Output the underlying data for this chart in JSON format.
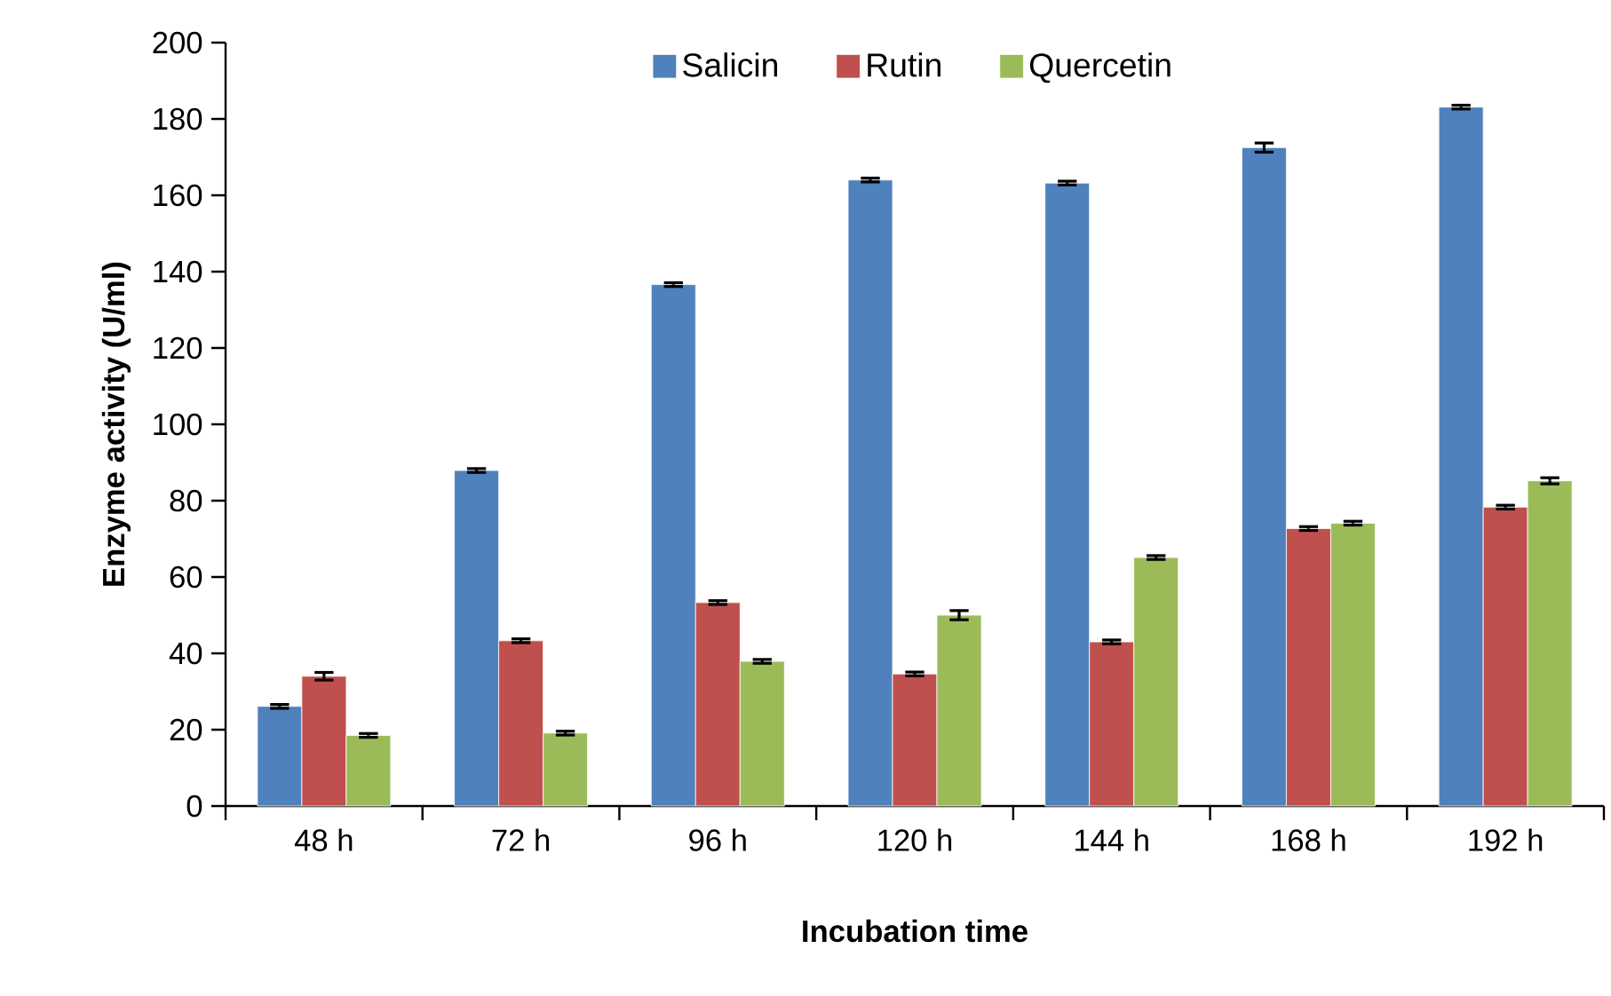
{
  "chart_data": {
    "type": "bar",
    "xlabel": "Incubation time",
    "ylabel": "Enzyme activity (U/ml)",
    "categories": [
      "48 h",
      "72 h",
      "96 h",
      "120 h",
      "144 h",
      "168 h",
      "192 h"
    ],
    "series": [
      {
        "name": "Salicin",
        "color": "#4f81bd",
        "values": [
          26.1,
          87.9,
          136.6,
          164,
          163.2,
          172.5,
          183.1
        ],
        "errors": [
          0.5,
          0.5,
          0.5,
          0.5,
          0.5,
          1.2,
          0.5
        ]
      },
      {
        "name": "Rutin",
        "color": "#c0504d",
        "values": [
          34,
          43.3,
          53.3,
          34.6,
          43,
          72.7,
          78.3
        ],
        "errors": [
          1,
          0.5,
          0.5,
          0.5,
          0.5,
          0.5,
          0.5
        ]
      },
      {
        "name": "Quercetin",
        "color": "#9bbb59",
        "values": [
          18.5,
          19.1,
          37.9,
          50,
          65.1,
          74.1,
          85.2
        ],
        "errors": [
          0.5,
          0.5,
          0.5,
          1.2,
          0.5,
          0.5,
          0.8
        ]
      }
    ],
    "ylim": [
      0,
      200
    ],
    "yticks": [
      0,
      20,
      40,
      60,
      80,
      100,
      120,
      140,
      160,
      180,
      200
    ],
    "grid": false,
    "legend": "top"
  }
}
